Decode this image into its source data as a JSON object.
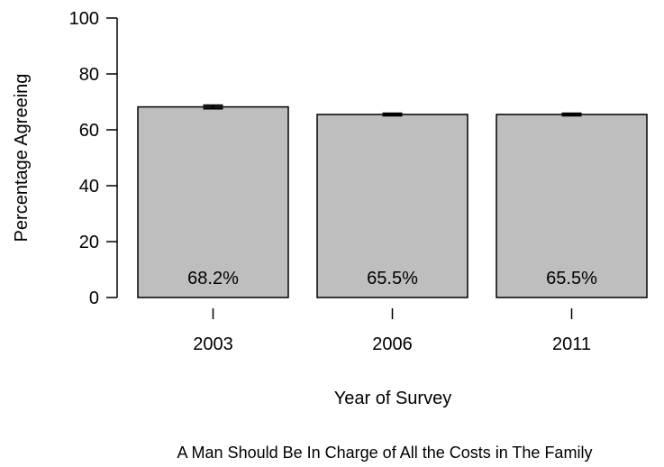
{
  "chart_data": {
    "type": "bar",
    "categories": [
      "2003",
      "2006",
      "2011"
    ],
    "values": [
      68.2,
      65.5,
      65.5
    ],
    "error_bars": [
      {
        "low": 67.6,
        "high": 68.8
      },
      {
        "low": 65.1,
        "high": 65.9
      },
      {
        "low": 65.1,
        "high": 65.9
      }
    ],
    "data_labels": [
      "68.2%",
      "65.5%",
      "65.5%"
    ],
    "title": "",
    "caption": "A Man Should Be In Charge of All the Costs in The Family",
    "xlabel": "Year of Survey",
    "ylabel": "Percentage Agreeing",
    "ylim": [
      0,
      100
    ],
    "yticks": [
      0,
      20,
      40,
      60,
      80,
      100
    ],
    "grid": false,
    "legend": "none",
    "colors": {
      "bar_fill": "#bebebe",
      "bar_stroke": "#000000",
      "error_bar": "#000000"
    }
  }
}
